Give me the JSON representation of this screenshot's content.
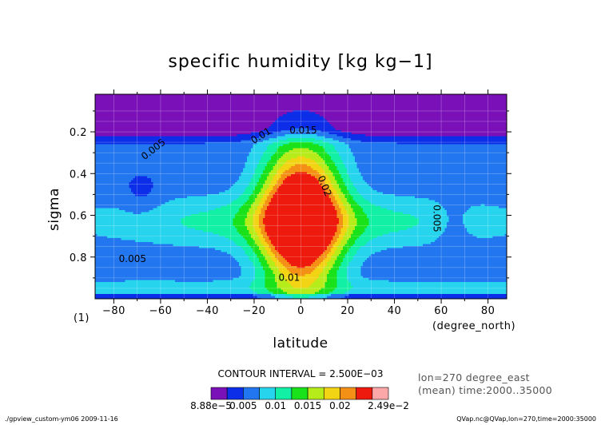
{
  "chart_data": {
    "type": "heatmap",
    "subtype": "filled-contour",
    "title": "specific humidity [kg kg−1]",
    "xlabel": "latitude",
    "ylabel": "sigma",
    "xunits": "(degree_north)",
    "y_index": "(1)",
    "xlim": [
      -88,
      88
    ],
    "ylim": [
      1.0,
      0.02
    ],
    "x_ticks": [
      -80,
      -60,
      -40,
      -20,
      0,
      20,
      40,
      60,
      80
    ],
    "x_tick_labels": [
      "−80",
      "−60",
      "−40",
      "−20",
      "0",
      "20",
      "40",
      "60",
      "80"
    ],
    "y_ticks": [
      0.2,
      0.4,
      0.6,
      0.8
    ],
    "y_tick_labels": [
      "0.2",
      "0.4",
      "0.6",
      "0.8"
    ],
    "grid": true,
    "contour_interval_text": "CONTOUR INTERVAL = 2.500E−03",
    "contour_interval": 0.0025,
    "levels": [
      0.0025,
      0.005,
      0.0075,
      0.01,
      0.0125,
      0.015,
      0.0175,
      0.02,
      0.0225
    ],
    "band_colors": [
      "#7a10b8",
      "#0c2ee8",
      "#2276f0",
      "#27d4ee",
      "#11f0a4",
      "#1ae21a",
      "#b6ec1a",
      "#f2d414",
      "#f49016",
      "#ee1a0e",
      "#fca8a8"
    ],
    "contour_labels": [
      {
        "text": "0.005",
        "lat": -63,
        "sigma": 0.285,
        "angle": -38
      },
      {
        "text": "0.01",
        "lat": -17,
        "sigma": 0.22,
        "angle": -32
      },
      {
        "text": "0.015",
        "lat": 1,
        "sigma": 0.195,
        "angle": 0
      },
      {
        "text": "0.02",
        "lat": 10,
        "sigma": 0.46,
        "angle": 68
      },
      {
        "text": "0.005",
        "lat": -72,
        "sigma": 0.81,
        "angle": 0
      },
      {
        "text": "0.005",
        "lat": 58,
        "sigma": 0.615,
        "angle": 90
      },
      {
        "text": "0.01",
        "lat": -5,
        "sigma": 0.9,
        "angle": 0
      }
    ],
    "colorbar": {
      "tick_labels": [
        "8.88e−5",
        "0.005",
        "0.01",
        "0.015",
        "0.02",
        "2.49e−2"
      ],
      "min": 8.88e-05,
      "max": 0.0249
    },
    "annotations": {
      "coord_info": [
        "lon=270 degree_east",
        "(mean) time:2000..35000"
      ],
      "footer_left": "./gpview_custom-ym06  2009-11-16",
      "footer_right": "QVap.nc@QVap,lon=270,time=2000:35000"
    }
  }
}
